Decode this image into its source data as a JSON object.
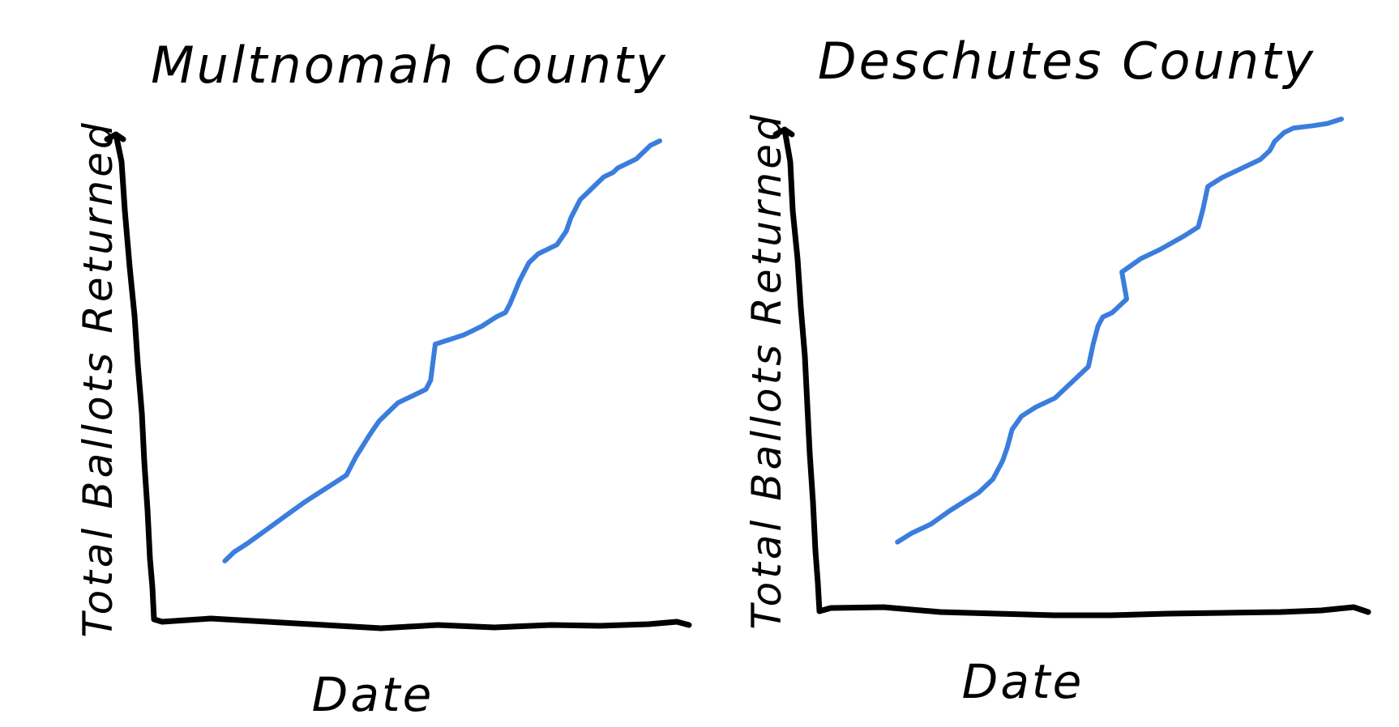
{
  "chart_data": [
    {
      "type": "line",
      "title": "Multnomah County",
      "xlabel": "Date",
      "ylabel": "Total Ballots Returned",
      "grid": false,
      "legend": "none",
      "xlim": [
        0,
        1
      ],
      "ylim": [
        0,
        1
      ],
      "series": [
        {
          "color": "#3b7ddd",
          "x": [
            0.07,
            0.09,
            0.12,
            0.16,
            0.2,
            0.24,
            0.27,
            0.3,
            0.33,
            0.35,
            0.38,
            0.4,
            0.42,
            0.44,
            0.46,
            0.48,
            0.5,
            0.51,
            0.52,
            0.55,
            0.58,
            0.6,
            0.62,
            0.65,
            0.67,
            0.68,
            0.7,
            0.72,
            0.74,
            0.76,
            0.78,
            0.8,
            0.81,
            0.83,
            0.85,
            0.87,
            0.88,
            0.9,
            0.91,
            0.93,
            0.95,
            0.98,
            1.0
          ],
          "y": [
            0.07,
            0.09,
            0.11,
            0.14,
            0.17,
            0.2,
            0.22,
            0.24,
            0.26,
            0.3,
            0.35,
            0.38,
            0.4,
            0.42,
            0.43,
            0.44,
            0.45,
            0.47,
            0.55,
            0.56,
            0.57,
            0.58,
            0.59,
            0.61,
            0.62,
            0.64,
            0.69,
            0.73,
            0.75,
            0.76,
            0.77,
            0.8,
            0.83,
            0.87,
            0.89,
            0.91,
            0.92,
            0.93,
            0.94,
            0.95,
            0.96,
            0.99,
            1.0
          ]
        }
      ]
    },
    {
      "type": "line",
      "title": "Deschutes County",
      "xlabel": "Date",
      "ylabel": "Total Ballots Returned",
      "grid": false,
      "legend": "none",
      "xlim": [
        0,
        1
      ],
      "ylim": [
        0,
        1
      ],
      "series": [
        {
          "color": "#3b7ddd",
          "x": [
            0.07,
            0.1,
            0.14,
            0.18,
            0.21,
            0.24,
            0.27,
            0.29,
            0.3,
            0.31,
            0.33,
            0.36,
            0.4,
            0.43,
            0.45,
            0.47,
            0.48,
            0.49,
            0.5,
            0.52,
            0.54,
            0.55,
            0.54,
            0.58,
            0.62,
            0.67,
            0.7,
            0.71,
            0.72,
            0.75,
            0.79,
            0.83,
            0.85,
            0.86,
            0.88,
            0.9,
            0.94,
            0.97,
            1.0
          ],
          "y": [
            0.06,
            0.08,
            0.1,
            0.13,
            0.15,
            0.17,
            0.2,
            0.24,
            0.27,
            0.31,
            0.34,
            0.36,
            0.38,
            0.41,
            0.43,
            0.45,
            0.5,
            0.54,
            0.56,
            0.57,
            0.59,
            0.6,
            0.66,
            0.69,
            0.71,
            0.74,
            0.76,
            0.8,
            0.85,
            0.87,
            0.89,
            0.91,
            0.93,
            0.95,
            0.97,
            0.98,
            0.985,
            0.99,
            1.0
          ]
        }
      ]
    }
  ]
}
